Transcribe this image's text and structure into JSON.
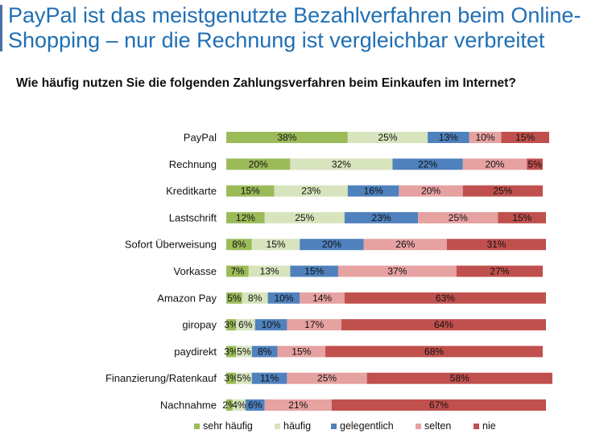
{
  "header": {
    "title": "PayPal ist das meistgenutzte Bezahlverfahren beim Online-Shopping – nur die Rechnung ist vergleichbar verbreitet",
    "subtitle": "Wie häufig nutzen Sie die folgenden Zahlungsverfahren beim Einkaufen im Internet?"
  },
  "chart_data": {
    "type": "bar",
    "orientation": "horizontal",
    "stacked": true,
    "percent": true,
    "title": "",
    "xlabel": "",
    "ylabel": "",
    "xlim": [
      0,
      100
    ],
    "grid": false,
    "legend_position": "bottom",
    "categories": [
      "PayPal",
      "Rechnung",
      "Kreditkarte",
      "Lastschrift",
      "Sofort Überweisung",
      "Vorkasse",
      "Amazon Pay",
      "giropay",
      "paydirekt",
      "Finanzierung/Ratenkauf",
      "Nachnahme"
    ],
    "series": [
      {
        "name": "sehr häufig",
        "color": "#9bbb59",
        "values": [
          38,
          20,
          15,
          12,
          8,
          7,
          5,
          3,
          3,
          3,
          2
        ]
      },
      {
        "name": "häufig",
        "color": "#d7e4bd",
        "values": [
          25,
          32,
          23,
          25,
          15,
          13,
          8,
          6,
          5,
          5,
          4
        ]
      },
      {
        "name": "gelegentlich",
        "color": "#4f81bd",
        "values": [
          13,
          22,
          16,
          23,
          20,
          15,
          10,
          10,
          8,
          11,
          6
        ]
      },
      {
        "name": "selten",
        "color": "#e6a1a1",
        "values": [
          10,
          20,
          20,
          25,
          26,
          37,
          14,
          17,
          15,
          25,
          21
        ]
      },
      {
        "name": "nie",
        "color": "#c0504d",
        "values": [
          15,
          5,
          25,
          15,
          31,
          27,
          63,
          64,
          68,
          58,
          67
        ]
      }
    ]
  }
}
